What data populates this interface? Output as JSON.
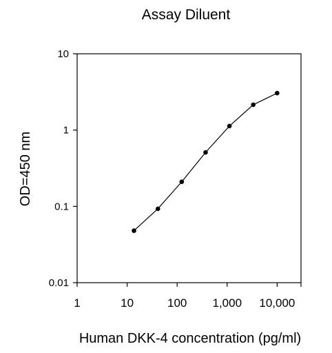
{
  "chart_data": {
    "type": "line",
    "title": "Assay Diluent",
    "xlabel": "Human DKK-4 concentration (pg/ml)",
    "ylabel": "OD=450 nm",
    "x_scale": "log",
    "y_scale": "log",
    "xlim": [
      1,
      30000
    ],
    "ylim": [
      0.01,
      10
    ],
    "x_ticks": [
      1,
      10,
      100,
      1000,
      10000
    ],
    "x_tick_labels": [
      "1",
      "10",
      "100",
      "1,000",
      "10,000"
    ],
    "y_ticks": [
      10,
      1,
      0.1,
      0.01
    ],
    "y_tick_labels": [
      "10",
      "1",
      "0.1",
      "0.01"
    ],
    "grid": false,
    "legend": "none",
    "series": [
      {
        "x": [
          13.7,
          41.2,
          123.5,
          370.4,
          1111,
          3333,
          10000
        ],
        "y": [
          0.048,
          0.093,
          0.21,
          0.51,
          1.13,
          2.15,
          3.05
        ]
      }
    ],
    "colors": {
      "line": "#000000",
      "marker": "#000000",
      "axis": "#000000"
    }
  }
}
